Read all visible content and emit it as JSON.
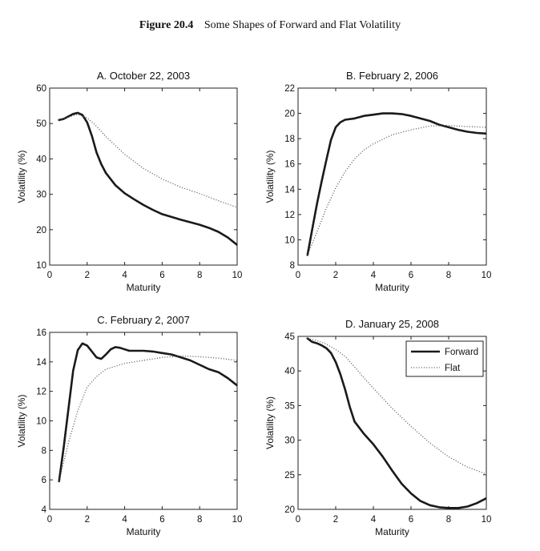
{
  "figure": {
    "number": "Figure 20.4",
    "title": "Some Shapes of Forward and Flat Volatility"
  },
  "colors": {
    "forward": "#1a1a1a",
    "flat": "#555555",
    "axis": "#222222"
  },
  "legend": {
    "forward": "Forward",
    "flat": "Flat",
    "placement": "top-right of panel D"
  },
  "chart_data": [
    {
      "type": "line",
      "title": "A. October 22, 2003",
      "xlabel": "Maturity",
      "ylabel": "Volatility (%)",
      "xlim": [
        0,
        10
      ],
      "ylim": [
        10,
        60
      ],
      "xticks": [
        0,
        2,
        4,
        6,
        8,
        10
      ],
      "yticks": [
        10,
        20,
        30,
        40,
        50,
        60
      ],
      "series": [
        {
          "name": "Forward",
          "x": [
            0.5,
            0.75,
            1,
            1.25,
            1.5,
            1.75,
            2,
            2.25,
            2.5,
            2.75,
            3,
            3.5,
            4,
            4.5,
            5,
            5.5,
            6,
            7,
            8,
            8.5,
            9,
            9.5,
            10
          ],
          "y": [
            51,
            51.3,
            52,
            52.7,
            53,
            52.4,
            50.3,
            46.5,
            41.8,
            38.5,
            36,
            32.6,
            30.3,
            28.6,
            27,
            25.6,
            24.4,
            22.8,
            21.4,
            20.5,
            19.4,
            17.8,
            15.7
          ]
        },
        {
          "name": "Flat",
          "x": [
            0.5,
            1,
            1.5,
            2,
            2.5,
            3,
            4,
            5,
            6,
            7,
            8,
            9,
            10
          ],
          "y": [
            51,
            51.8,
            52.6,
            51.6,
            49.2,
            46.3,
            41.3,
            37.3,
            34.3,
            32,
            30.2,
            28.2,
            26.3
          ]
        }
      ]
    },
    {
      "type": "line",
      "title": "B. February 2, 2006",
      "xlabel": "Maturity",
      "ylabel": "Volatility (%)",
      "xlim": [
        0,
        10
      ],
      "ylim": [
        8,
        22
      ],
      "xticks": [
        0,
        2,
        4,
        6,
        8,
        10
      ],
      "yticks": [
        8,
        10,
        12,
        14,
        16,
        18,
        20,
        22
      ],
      "series": [
        {
          "name": "Forward",
          "x": [
            0.5,
            0.75,
            1,
            1.25,
            1.5,
            1.75,
            2,
            2.25,
            2.5,
            3,
            3.5,
            4,
            4.5,
            5,
            5.5,
            6,
            6.5,
            7,
            7.5,
            8,
            8.5,
            9,
            9.5,
            10
          ],
          "y": [
            8.8,
            10.8,
            12.8,
            14.6,
            16.3,
            17.9,
            18.9,
            19.3,
            19.5,
            19.6,
            19.8,
            19.9,
            20.0,
            20.0,
            19.95,
            19.8,
            19.6,
            19.4,
            19.1,
            18.9,
            18.7,
            18.55,
            18.45,
            18.4
          ]
        },
        {
          "name": "Flat",
          "x": [
            0.5,
            1,
            1.5,
            2,
            2.5,
            3,
            3.5,
            4,
            5,
            6,
            7,
            8,
            9,
            10
          ],
          "y": [
            8.8,
            10.6,
            12.5,
            14.1,
            15.4,
            16.4,
            17.1,
            17.6,
            18.3,
            18.7,
            19.0,
            19.05,
            18.95,
            18.9
          ]
        }
      ]
    },
    {
      "type": "line",
      "title": "C. February 2, 2007",
      "xlabel": "Maturity",
      "ylabel": "Volatility (%)",
      "xlim": [
        0,
        10
      ],
      "ylim": [
        4,
        16
      ],
      "xticks": [
        0,
        2,
        4,
        6,
        8,
        10
      ],
      "yticks": [
        4,
        6,
        8,
        10,
        12,
        14,
        16
      ],
      "series": [
        {
          "name": "Forward",
          "x": [
            0.5,
            0.75,
            1,
            1.25,
            1.5,
            1.75,
            2,
            2.25,
            2.5,
            2.75,
            3,
            3.25,
            3.5,
            3.75,
            4,
            4.25,
            4.5,
            5,
            5.5,
            6,
            6.5,
            7,
            7.5,
            8,
            8.5,
            9,
            9.5,
            10
          ],
          "y": [
            5.9,
            8.2,
            10.8,
            13.4,
            14.8,
            15.25,
            15.1,
            14.7,
            14.3,
            14.2,
            14.5,
            14.85,
            15.0,
            14.95,
            14.85,
            14.75,
            14.75,
            14.75,
            14.7,
            14.6,
            14.5,
            14.3,
            14.1,
            13.8,
            13.5,
            13.3,
            12.9,
            12.4
          ]
        },
        {
          "name": "Flat",
          "x": [
            0.5,
            1,
            1.5,
            2,
            2.5,
            3,
            4,
            5,
            6,
            7,
            8,
            9,
            10
          ],
          "y": [
            5.9,
            8.5,
            10.7,
            12.3,
            13.0,
            13.5,
            13.9,
            14.1,
            14.3,
            14.4,
            14.35,
            14.25,
            14.1
          ]
        }
      ]
    },
    {
      "type": "line",
      "title": "D. January 25, 2008",
      "xlabel": "Maturity",
      "ylabel": "Volatility (%)",
      "xlim": [
        0,
        10
      ],
      "ylim": [
        20,
        45
      ],
      "xticks": [
        0,
        2,
        4,
        6,
        8,
        10
      ],
      "yticks": [
        20,
        25,
        30,
        35,
        40,
        45
      ],
      "legend": [
        "Forward",
        "Flat"
      ],
      "series": [
        {
          "name": "Forward",
          "x": [
            0.5,
            0.75,
            1,
            1.25,
            1.5,
            1.75,
            2,
            2.25,
            2.5,
            2.75,
            3,
            3.5,
            4,
            4.5,
            5,
            5.5,
            6,
            6.5,
            7,
            7.5,
            8,
            8.5,
            9,
            9.5,
            10
          ],
          "y": [
            44.7,
            44.2,
            44.0,
            43.7,
            43.3,
            42.6,
            41.3,
            39.5,
            37.3,
            34.8,
            32.7,
            30.9,
            29.4,
            27.6,
            25.6,
            23.7,
            22.3,
            21.2,
            20.6,
            20.3,
            20.2,
            20.2,
            20.4,
            20.9,
            21.6
          ]
        },
        {
          "name": "Flat",
          "x": [
            0.5,
            1,
            1.5,
            2,
            2.5,
            3,
            3.5,
            4,
            5,
            6,
            7,
            8,
            9,
            10
          ],
          "y": [
            44.7,
            44.4,
            43.9,
            43.1,
            42.1,
            40.6,
            39.0,
            37.5,
            34.6,
            32.0,
            29.6,
            27.6,
            26.1,
            25.1
          ]
        }
      ]
    }
  ]
}
